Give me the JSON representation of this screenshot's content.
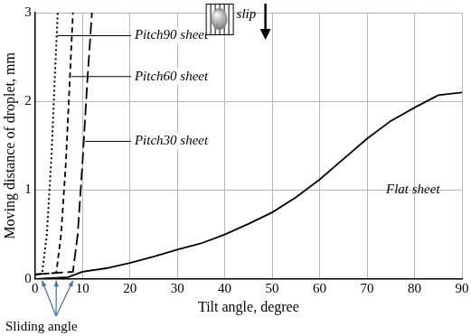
{
  "chart_data": {
    "type": "line",
    "x_label": "Tilt angle, degree",
    "y_label": "Moving distance of droplet, mm",
    "annotations": [
      "slip",
      "Sliding angle"
    ],
    "xlim": [
      0,
      90
    ],
    "xticks": [
      0,
      10,
      20,
      30,
      40,
      50,
      60,
      70,
      80,
      90
    ],
    "ylim": [
      0,
      3
    ],
    "yticks": [
      0,
      1,
      2,
      3
    ],
    "grid": true,
    "series": [
      {
        "name": "Pitch90 sheet",
        "color": "#000000",
        "line_style": "dotted",
        "x": [
          0,
          1.5,
          2.5,
          3.5,
          4.2,
          4.8
        ],
        "values": [
          0.05,
          0.06,
          0.5,
          1.4,
          2.3,
          3
        ]
      },
      {
        "name": "Pitch60 sheet",
        "color": "#000000",
        "line_style": "dashed",
        "x": [
          0,
          4.5,
          5.5,
          6.5,
          7.3,
          8
        ],
        "values": [
          0.05,
          0.07,
          0.5,
          1.3,
          2.2,
          3
        ]
      },
      {
        "name": "Pitch30 sheet",
        "color": "#000000",
        "line_style": "long_dashed",
        "x": [
          0,
          8,
          9,
          10,
          11,
          12
        ],
        "values": [
          0.05,
          0.08,
          0.5,
          1.3,
          2.2,
          3
        ]
      },
      {
        "name": "Flat sheet",
        "color": "#000000",
        "line_style": "solid",
        "x": [
          0,
          7,
          10,
          15,
          20,
          25,
          30,
          35,
          40,
          45,
          50,
          55,
          60,
          65,
          70,
          75,
          80,
          85,
          90
        ],
        "values": [
          0,
          0.02,
          0.08,
          0.12,
          0.18,
          0.25,
          0.33,
          0.4,
          0.5,
          0.62,
          0.75,
          0.92,
          1.12,
          1.35,
          1.58,
          1.78,
          1.93,
          2.07,
          2.1
        ]
      }
    ]
  }
}
